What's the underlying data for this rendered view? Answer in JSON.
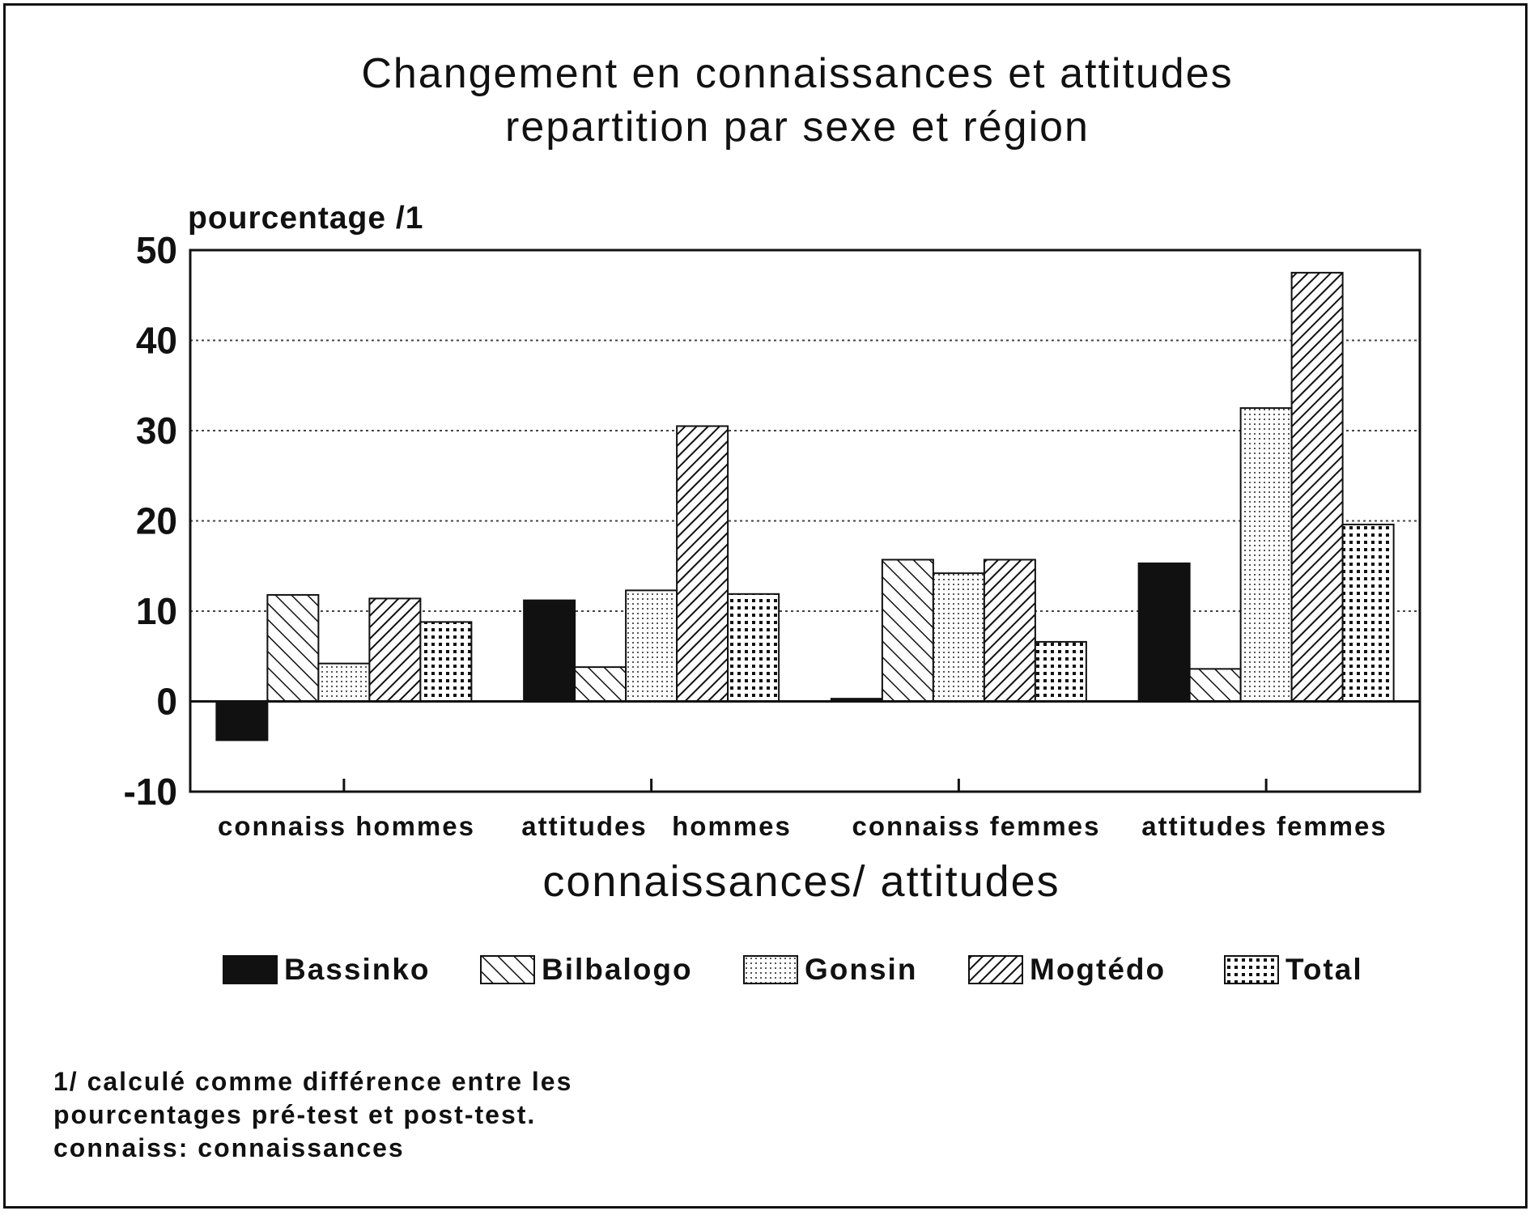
{
  "chart_data": {
    "type": "bar",
    "title": [
      "Changement en connaissances et attitudes",
      "repartition par sexe et région"
    ],
    "ylabel": "pourcentage /1",
    "xlabel": "connaissances/ attitudes",
    "ylim": [
      -10,
      50
    ],
    "yticks": [
      50,
      40,
      30,
      20,
      10,
      0,
      -10
    ],
    "ytick_labels": [
      "50",
      "40",
      "30",
      "20",
      "10",
      "0",
      "-10"
    ],
    "grid": true,
    "categories": [
      "connaiss hommes",
      "attitudes  hommes",
      "connaiss femmes",
      "attitudes femmes"
    ],
    "category_labels": [
      "connaiss hommes",
      "attitudes",
      "hommes",
      "connaiss femmes",
      "attitudes femmes"
    ],
    "series": [
      {
        "name": "Bassinko",
        "values": [
          -4.3,
          11.2,
          0.3,
          15.3
        ],
        "pattern": "solid"
      },
      {
        "name": "Bilbalogo",
        "values": [
          11.8,
          3.8,
          15.7,
          3.6
        ],
        "pattern": "backslash"
      },
      {
        "name": "Gonsin",
        "values": [
          4.2,
          12.3,
          14.2,
          32.5
        ],
        "pattern": "dots-light"
      },
      {
        "name": "Mogtédo",
        "values": [
          11.4,
          30.5,
          15.7,
          47.5
        ],
        "pattern": "slash"
      },
      {
        "name": "Total",
        "values": [
          8.8,
          11.9,
          6.6,
          19.6
        ],
        "pattern": "dots-dense"
      }
    ],
    "legend": "bottom"
  },
  "footnote": [
    "1/ calculé comme différence entre les",
    "pourcentages pré-test et post-test.",
    "connaiss: connaissances"
  ]
}
